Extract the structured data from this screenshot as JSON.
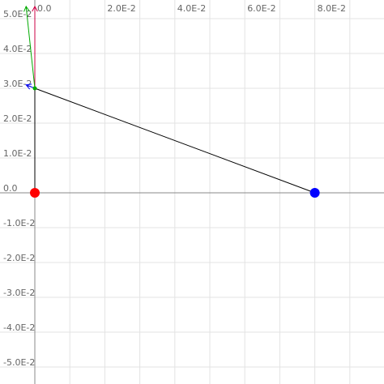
{
  "chart_data": {
    "type": "scatter",
    "x_range": [
      -0.01,
      0.1
    ],
    "y_range": [
      -0.055,
      0.055
    ],
    "grid": true,
    "x_ticks": [
      0.0,
      0.02,
      0.04,
      0.06,
      0.08
    ],
    "x_tick_labels": [
      "0.0",
      "2.0E-2",
      "4.0E-2",
      "6.0E-2",
      "8.0E-2"
    ],
    "y_ticks": [
      0.05,
      0.04,
      0.03,
      0.02,
      0.01,
      0.0,
      -0.01,
      -0.02,
      -0.03,
      -0.04,
      -0.05
    ],
    "y_tick_labels": [
      "5.0E-2",
      "4.0E-2",
      "3.0E-2",
      "2.0E-2",
      "1.0E-2",
      "0.0",
      "-1.0E-2",
      "-2.0E-2",
      "-3.0E-2",
      "-4.0E-2",
      "-5.0E-2"
    ],
    "points": [
      {
        "name": "red-point",
        "x": 0.0,
        "y": 0.0,
        "color": "#ff0000"
      },
      {
        "name": "blue-point",
        "x": 0.08,
        "y": 0.0,
        "color": "#0000ff"
      },
      {
        "name": "green-point",
        "x": 0.0,
        "y": 0.03,
        "color": "#00aa00"
      }
    ],
    "segments": [
      {
        "name": "vertical-link",
        "from": [
          0.0,
          0.0
        ],
        "to": [
          0.0,
          0.03
        ],
        "color": "#000000"
      },
      {
        "name": "diagonal-link",
        "from": [
          0.0,
          0.03
        ],
        "to": [
          0.08,
          0.0
        ],
        "color": "#000000"
      }
    ],
    "vectors": [
      {
        "name": "magenta-vector",
        "from": [
          0.0,
          0.03
        ],
        "to": [
          0.0,
          0.0535
        ],
        "color": "#cc0044"
      },
      {
        "name": "green-vector",
        "from": [
          0.0,
          0.03
        ],
        "to": [
          -0.0025,
          0.0535
        ],
        "color": "#00aa00"
      },
      {
        "name": "blue-vector",
        "from": [
          0.0,
          0.03
        ],
        "to": [
          -0.0025,
          0.031
        ],
        "color": "#0000ff"
      }
    ]
  }
}
